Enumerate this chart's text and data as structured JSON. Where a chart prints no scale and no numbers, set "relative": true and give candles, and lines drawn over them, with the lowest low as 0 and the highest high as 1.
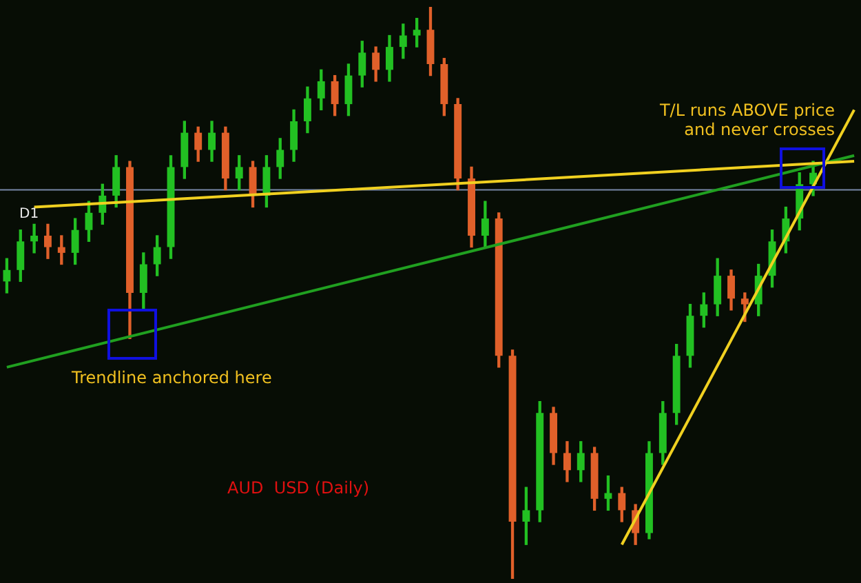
{
  "chart_data": {
    "type": "candlestick",
    "relative": true,
    "title": "AUD  USD (Daily)",
    "annotations": [
      "D1",
      "T/L runs ABOVE price",
      "and never crosses",
      "Trendline anchored here"
    ],
    "categories": [
      null,
      null,
      null,
      null,
      null,
      null,
      null,
      null,
      null,
      null,
      null,
      null,
      null,
      null,
      null,
      null,
      null,
      null,
      null,
      null,
      null,
      null,
      null,
      null,
      null,
      null,
      null,
      null,
      null,
      null,
      null,
      null,
      null,
      null,
      null,
      null,
      null,
      null,
      null,
      null,
      null,
      null,
      null,
      null,
      null,
      null,
      null,
      null,
      null,
      null,
      null,
      null,
      null,
      null,
      null,
      null,
      null,
      null,
      null,
      null,
      null,
      null,
      null
    ],
    "series": [
      {
        "ohlc": [
          [
            0.52,
            0.56,
            0.5,
            0.54
          ],
          [
            0.54,
            0.61,
            0.52,
            0.59
          ],
          [
            0.59,
            0.62,
            0.57,
            0.6
          ],
          [
            0.6,
            0.62,
            0.56,
            0.58
          ],
          [
            0.58,
            0.6,
            0.55,
            0.57
          ],
          [
            0.57,
            0.63,
            0.55,
            0.61
          ],
          [
            0.61,
            0.66,
            0.59,
            0.64
          ],
          [
            0.64,
            0.69,
            0.62,
            0.67
          ],
          [
            0.67,
            0.74,
            0.65,
            0.72
          ],
          [
            0.72,
            0.73,
            0.42,
            0.5
          ],
          [
            0.5,
            0.57,
            0.47,
            0.55
          ],
          [
            0.55,
            0.6,
            0.53,
            0.58
          ],
          [
            0.58,
            0.74,
            0.56,
            0.72
          ],
          [
            0.72,
            0.8,
            0.7,
            0.78
          ],
          [
            0.78,
            0.79,
            0.73,
            0.75
          ],
          [
            0.75,
            0.8,
            0.73,
            0.78
          ],
          [
            0.78,
            0.79,
            0.68,
            0.7
          ],
          [
            0.7,
            0.74,
            0.68,
            0.72
          ],
          [
            0.72,
            0.73,
            0.65,
            0.67
          ],
          [
            0.67,
            0.74,
            0.65,
            0.72
          ],
          [
            0.72,
            0.77,
            0.7,
            0.75
          ],
          [
            0.75,
            0.82,
            0.73,
            0.8
          ],
          [
            0.8,
            0.86,
            0.78,
            0.84
          ],
          [
            0.84,
            0.89,
            0.82,
            0.87
          ],
          [
            0.87,
            0.88,
            0.81,
            0.83
          ],
          [
            0.83,
            0.9,
            0.81,
            0.88
          ],
          [
            0.88,
            0.94,
            0.86,
            0.92
          ],
          [
            0.92,
            0.93,
            0.87,
            0.89
          ],
          [
            0.89,
            0.95,
            0.87,
            0.93
          ],
          [
            0.93,
            0.97,
            0.91,
            0.95
          ],
          [
            0.95,
            0.98,
            0.93,
            0.96
          ],
          [
            0.96,
            1.0,
            0.88,
            0.9
          ],
          [
            0.9,
            0.91,
            0.81,
            0.83
          ],
          [
            0.83,
            0.84,
            0.68,
            0.7
          ],
          [
            0.7,
            0.72,
            0.58,
            0.6
          ],
          [
            0.6,
            0.66,
            0.58,
            0.63
          ],
          [
            0.63,
            0.64,
            0.37,
            0.39
          ],
          [
            0.39,
            0.4,
            0.0,
            0.1
          ],
          [
            0.1,
            0.16,
            0.06,
            0.12
          ],
          [
            0.12,
            0.31,
            0.1,
            0.29
          ],
          [
            0.29,
            0.3,
            0.2,
            0.22
          ],
          [
            0.22,
            0.24,
            0.17,
            0.19
          ],
          [
            0.19,
            0.24,
            0.17,
            0.22
          ],
          [
            0.22,
            0.23,
            0.12,
            0.14
          ],
          [
            0.14,
            0.18,
            0.12,
            0.15
          ],
          [
            0.15,
            0.16,
            0.1,
            0.12
          ],
          [
            0.12,
            0.13,
            0.06,
            0.08
          ],
          [
            0.08,
            0.24,
            0.07,
            0.22
          ],
          [
            0.22,
            0.31,
            0.2,
            0.29
          ],
          [
            0.29,
            0.41,
            0.27,
            0.39
          ],
          [
            0.39,
            0.48,
            0.37,
            0.46
          ],
          [
            0.46,
            0.5,
            0.44,
            0.48
          ],
          [
            0.48,
            0.56,
            0.46,
            0.53
          ],
          [
            0.53,
            0.54,
            0.47,
            0.49
          ],
          [
            0.49,
            0.5,
            0.45,
            0.48
          ],
          [
            0.48,
            0.55,
            0.46,
            0.53
          ],
          [
            0.53,
            0.61,
            0.51,
            0.59
          ],
          [
            0.59,
            0.65,
            0.57,
            0.63
          ],
          [
            0.63,
            0.71,
            0.61,
            0.69
          ],
          [
            0.69,
            0.73,
            0.67,
            0.71
          ],
          null,
          null,
          null
        ],
        "colors": [
          "#22c022",
          "#22c022",
          "#22c022",
          "#e0602a",
          "#e0602a",
          "#22c022",
          "#22c022",
          "#22c022",
          "#22c022",
          "#e0602a",
          "#22c022",
          "#22c022",
          "#22c022",
          "#22c022",
          "#e0602a",
          "#22c022",
          "#e0602a",
          "#22c022",
          "#e0602a",
          "#22c022",
          "#22c022",
          "#22c022",
          "#22c022",
          "#22c022",
          "#e0602a",
          "#22c022",
          "#22c022",
          "#e0602a",
          "#22c022",
          "#22c022",
          "#22c022",
          "#e0602a",
          "#e0602a",
          "#e0602a",
          "#e0602a",
          "#22c022",
          "#e0602a",
          "#e0602a",
          "#22c022",
          "#22c022",
          "#e0602a",
          "#e0602a",
          "#22c022",
          "#e0602a",
          "#22c022",
          "#e0602a",
          "#e0602a",
          "#22c022",
          "#22c022",
          "#22c022",
          "#22c022",
          "#22c022",
          "#22c022",
          "#e0602a",
          "#e0602a",
          "#22c022",
          "#22c022",
          "#22c022",
          "#22c022",
          "#22c022",
          null,
          null,
          null
        ]
      },
      {
        "type": "line",
        "color": "#f0d020",
        "values": [
          null,
          null,
          0.65,
          null,
          null,
          null,
          null,
          null,
          null,
          null,
          null,
          null,
          null,
          null,
          null,
          null,
          null,
          null,
          null,
          null,
          null,
          null,
          null,
          null,
          null,
          null,
          null,
          null,
          null,
          null,
          null,
          null,
          null,
          null,
          null,
          null,
          null,
          null,
          null,
          null,
          null,
          null,
          null,
          null,
          null,
          null,
          null,
          null,
          null,
          null,
          null,
          null,
          null,
          null,
          null,
          null,
          null,
          null,
          null,
          null,
          null,
          null,
          0.73
        ]
      },
      {
        "type": "line",
        "color": "#20a020",
        "values": [
          0.37,
          null,
          null,
          null,
          null,
          null,
          null,
          null,
          null,
          null,
          null,
          null,
          null,
          null,
          null,
          null,
          null,
          null,
          null,
          null,
          null,
          null,
          null,
          null,
          null,
          null,
          null,
          null,
          null,
          null,
          null,
          null,
          null,
          null,
          null,
          null,
          null,
          null,
          null,
          null,
          null,
          null,
          null,
          null,
          null,
          null,
          null,
          null,
          null,
          null,
          null,
          null,
          null,
          null,
          null,
          null,
          null,
          null,
          null,
          null,
          null,
          null,
          0.74
        ]
      },
      {
        "type": "line",
        "color": "#f0d020",
        "values": [
          null,
          null,
          null,
          null,
          null,
          null,
          null,
          null,
          null,
          null,
          null,
          null,
          null,
          null,
          null,
          null,
          null,
          null,
          null,
          null,
          null,
          null,
          null,
          null,
          null,
          null,
          null,
          null,
          null,
          null,
          null,
          null,
          null,
          null,
          null,
          null,
          null,
          null,
          null,
          null,
          null,
          null,
          null,
          null,
          null,
          0.06,
          null,
          null,
          null,
          null,
          null,
          null,
          null,
          null,
          null,
          null,
          null,
          null,
          null,
          null,
          null,
          null,
          0.82
        ]
      }
    ],
    "ref_lines": [
      {
        "axis": "y",
        "value": 0.68,
        "color": "#7888a8"
      }
    ]
  }
}
